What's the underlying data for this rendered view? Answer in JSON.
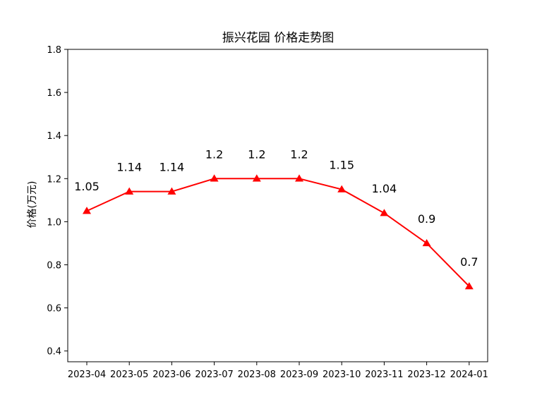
{
  "chart_data": {
    "type": "line",
    "title": "振兴花园 价格走势图",
    "xlabel": "",
    "ylabel": "价格(万元)",
    "categories": [
      "2023-04",
      "2023-05",
      "2023-06",
      "2023-07",
      "2023-08",
      "2023-09",
      "2023-10",
      "2023-11",
      "2023-12",
      "2024-01"
    ],
    "series": [
      {
        "values": [
          1.05,
          1.14,
          1.14,
          1.2,
          1.2,
          1.2,
          1.15,
          1.04,
          0.9,
          0.7
        ],
        "labels": [
          "1.05",
          "1.14",
          "1.14",
          "1.2",
          "1.2",
          "1.2",
          "1.15",
          "1.04",
          "0.9",
          "0.7"
        ],
        "color": "#ff0000",
        "marker": "triangle-up"
      }
    ],
    "ylim": [
      0.35,
      1.8
    ],
    "yticks": [
      0.4,
      0.6,
      0.8,
      1.0,
      1.2,
      1.4,
      1.6,
      1.8
    ],
    "ytick_labels": [
      "0.4",
      "0.6",
      "0.8",
      "1.0",
      "1.2",
      "1.4",
      "1.6",
      "1.8"
    ],
    "grid": false,
    "legend": "none"
  }
}
